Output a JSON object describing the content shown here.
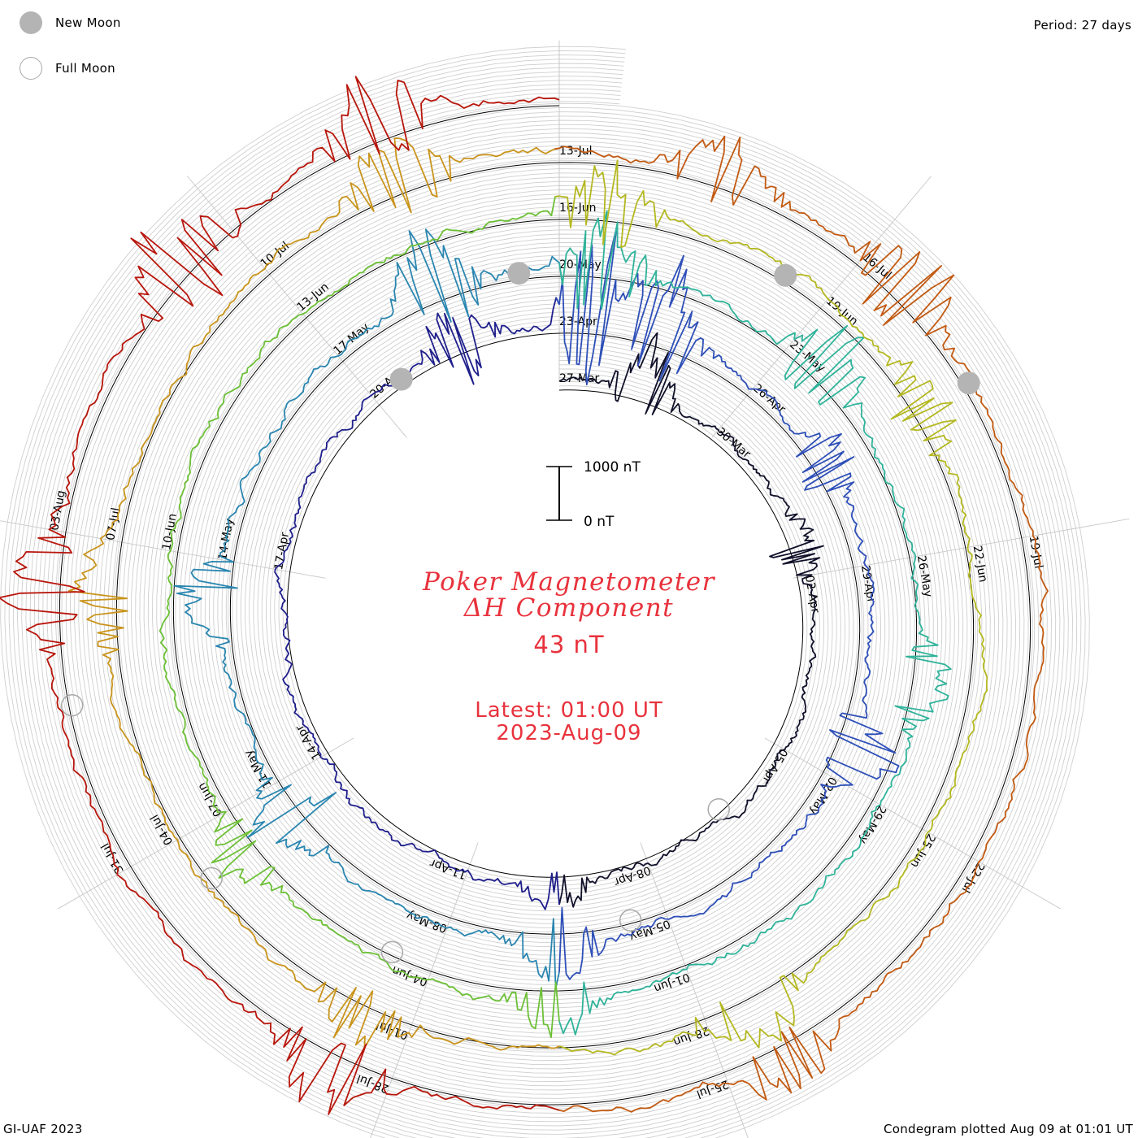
{
  "header": {
    "period_label": "Period: 27 days"
  },
  "legend": {
    "new_moon_label": "New Moon",
    "full_moon_label": "Full Moon",
    "new_moon_color": "#b4b4b4",
    "full_moon_color": "#a8a8a8"
  },
  "center": {
    "title_line1": "Poker Magnetometer",
    "title_line2": "ΔH Component",
    "value": "43 nT",
    "latest_time": "Latest: 01:00 UT",
    "latest_date": "2023-Aug-09",
    "text_color": "#e8323c"
  },
  "footer": {
    "left": "GI-UAF 2023",
    "right": "Condegram plotted Aug 09 at 01:01 UT"
  },
  "chart_data": {
    "type": "line",
    "subtype": "condegram spiral (polar time series)",
    "period_days": 27,
    "start_date": "2023-03-27",
    "end": "2023-08-09 01:00 UT",
    "scale_bar": {
      "top_label": "1000 nT",
      "bottom_label": "0 nT"
    },
    "date_labels": [
      "27-Mar",
      "30-Mar",
      "02-Apr",
      "05-Apr",
      "08-Apr",
      "11-Apr",
      "14-Apr",
      "17-Apr",
      "20-Apr",
      "23-Apr",
      "26-Apr",
      "29-Apr",
      "02-May",
      "05-May",
      "08-May",
      "11-May",
      "14-May",
      "17-May",
      "20-May",
      "23-May",
      "26-May",
      "29-May",
      "01-Jun",
      "04-Jun",
      "07-Jun",
      "10-Jun",
      "13-Jun",
      "16-Jun",
      "19-Jun",
      "22-Jun",
      "25-Jun",
      "28-Jun",
      "01-Jul",
      "04-Jul",
      "07-Jul",
      "10-Jul",
      "13-Jul",
      "16-Jul",
      "19-Jul",
      "22-Jul",
      "25-Jul",
      "28-Jul",
      "31-Jul",
      "03-Aug"
    ],
    "new_moons": [
      "2023-04-20",
      "2023-05-19",
      "2023-06-18",
      "2023-07-17"
    ],
    "full_moons": [
      "2023-04-06",
      "2023-05-05",
      "2023-06-04",
      "2023-07-03",
      "2023-08-01"
    ],
    "rotation_colors": [
      "#10102a",
      "#1f1f8c",
      "#2e4fb8",
      "#2a86b0",
      "#2fb39a",
      "#6cc036",
      "#b4b820",
      "#c9941c",
      "#c25a12",
      "#b8160c"
    ],
    "disturbances": [
      {
        "date": "2023-03-28",
        "peak_nT": 320
      },
      {
        "date": "2023-04-01",
        "peak_nT": 180
      },
      {
        "date": "2023-04-09",
        "peak_nT": 150
      },
      {
        "date": "2023-04-21",
        "peak_nT": 260
      },
      {
        "date": "2023-04-23",
        "peak_nT": 620
      },
      {
        "date": "2023-04-24",
        "peak_nT": 480
      },
      {
        "date": "2023-04-27",
        "peak_nT": 220
      },
      {
        "date": "2023-05-01",
        "peak_nT": 260
      },
      {
        "date": "2023-05-06",
        "peak_nT": 250
      },
      {
        "date": "2023-05-10",
        "peak_nT": 320
      },
      {
        "date": "2023-05-13",
        "peak_nT": 280
      },
      {
        "date": "2023-05-18",
        "peak_nT": 400
      },
      {
        "date": "2023-05-20",
        "peak_nT": 380
      },
      {
        "date": "2023-05-23",
        "peak_nT": 350
      },
      {
        "date": "2023-05-27",
        "peak_nT": 240
      },
      {
        "date": "2023-06-02",
        "peak_nT": 220
      },
      {
        "date": "2023-06-06",
        "peak_nT": 200
      },
      {
        "date": "2023-06-16",
        "peak_nT": 300
      },
      {
        "date": "2023-06-20",
        "peak_nT": 220
      },
      {
        "date": "2023-06-27",
        "peak_nT": 260
      },
      {
        "date": "2023-07-01",
        "peak_nT": 200
      },
      {
        "date": "2023-07-06",
        "peak_nT": 230
      },
      {
        "date": "2023-07-11",
        "peak_nT": 300
      },
      {
        "date": "2023-07-14",
        "peak_nT": 260
      },
      {
        "date": "2023-07-16",
        "peak_nT": 320
      },
      {
        "date": "2023-07-24",
        "peak_nT": 240
      },
      {
        "date": "2023-07-28",
        "peak_nT": 280
      },
      {
        "date": "2023-08-02",
        "peak_nT": 260
      },
      {
        "date": "2023-08-05",
        "peak_nT": 350
      },
      {
        "date": "2023-08-07",
        "peak_nT": 300
      }
    ]
  }
}
